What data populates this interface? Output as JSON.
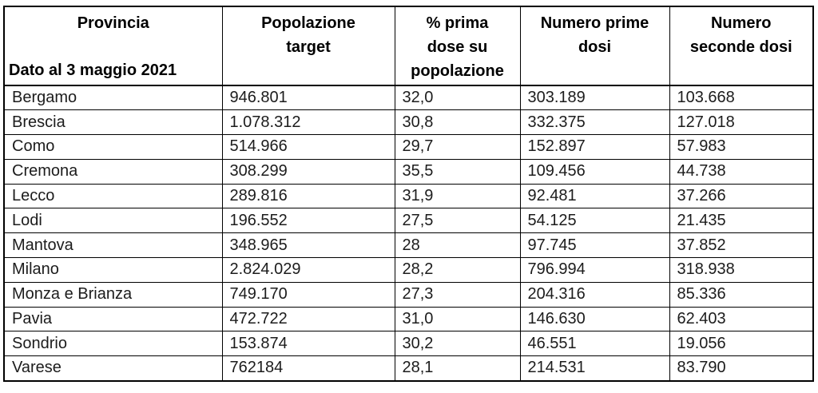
{
  "table": {
    "header": {
      "provincia_label": "Provincia",
      "date_note": "Dato al 3 maggio 2021",
      "columns": [
        {
          "label": "Popolazione target",
          "lines": [
            "Popolazione",
            "target"
          ]
        },
        {
          "label": "% prima dose su popolazione",
          "lines": [
            "% prima",
            "dose su",
            "popolazione"
          ]
        },
        {
          "label": "Numero prime dosi",
          "lines": [
            "Numero prime",
            "dosi"
          ]
        },
        {
          "label": "Numero seconde dosi",
          "lines": [
            "Numero",
            "seconde dosi"
          ]
        }
      ]
    },
    "rows": [
      {
        "provincia": "Bergamo",
        "popolazione_target": "946.801",
        "pct_prima_dose": "32,0",
        "prime_dosi": "303.189",
        "seconde_dosi": "103.668"
      },
      {
        "provincia": "Brescia",
        "popolazione_target": "1.078.312",
        "pct_prima_dose": "30,8",
        "prime_dosi": "332.375",
        "seconde_dosi": "127.018"
      },
      {
        "provincia": "Como",
        "popolazione_target": "514.966",
        "pct_prima_dose": "29,7",
        "prime_dosi": "152.897",
        "seconde_dosi": "57.983"
      },
      {
        "provincia": "Cremona",
        "popolazione_target": "308.299",
        "pct_prima_dose": "35,5",
        "prime_dosi": "109.456",
        "seconde_dosi": "44.738"
      },
      {
        "provincia": "Lecco",
        "popolazione_target": "289.816",
        "pct_prima_dose": "31,9",
        "prime_dosi": "92.481",
        "seconde_dosi": "37.266"
      },
      {
        "provincia": "Lodi",
        "popolazione_target": "196.552",
        "pct_prima_dose": "27,5",
        "prime_dosi": "54.125",
        "seconde_dosi": "21.435"
      },
      {
        "provincia": "Mantova",
        "popolazione_target": "348.965",
        "pct_prima_dose": "28",
        "prime_dosi": "97.745",
        "seconde_dosi": "37.852"
      },
      {
        "provincia": "Milano",
        "popolazione_target": "2.824.029",
        "pct_prima_dose": "28,2",
        "prime_dosi": "796.994",
        "seconde_dosi": "318.938"
      },
      {
        "provincia": "Monza e Brianza",
        "popolazione_target": "749.170",
        "pct_prima_dose": "27,3",
        "prime_dosi": "204.316",
        "seconde_dosi": "85.336"
      },
      {
        "provincia": "Pavia",
        "popolazione_target": "472.722",
        "pct_prima_dose": "31,0",
        "prime_dosi": "146.630",
        "seconde_dosi": "62.403"
      },
      {
        "provincia": "Sondrio",
        "popolazione_target": "153.874",
        "pct_prima_dose": "30,2",
        "prime_dosi": "46.551",
        "seconde_dosi": "19.056"
      },
      {
        "provincia": "Varese",
        "popolazione_target": "762184",
        "pct_prima_dose": "28,1",
        "prime_dosi": "214.531",
        "seconde_dosi": "83.790"
      }
    ]
  },
  "chart_data": {
    "type": "table",
    "columns": [
      "Provincia",
      "Popolazione target",
      "% prima dose su popolazione",
      "Numero prime dosi",
      "Numero seconde dosi"
    ],
    "note": "Dato al 3 maggio 2021",
    "rows": [
      [
        "Bergamo",
        "946.801",
        "32,0",
        "303.189",
        "103.668"
      ],
      [
        "Brescia",
        "1.078.312",
        "30,8",
        "332.375",
        "127.018"
      ],
      [
        "Como",
        "514.966",
        "29,7",
        "152.897",
        "57.983"
      ],
      [
        "Cremona",
        "308.299",
        "35,5",
        "109.456",
        "44.738"
      ],
      [
        "Lecco",
        "289.816",
        "31,9",
        "92.481",
        "37.266"
      ],
      [
        "Lodi",
        "196.552",
        "27,5",
        "54.125",
        "21.435"
      ],
      [
        "Mantova",
        "348.965",
        "28",
        "97.745",
        "37.852"
      ],
      [
        "Milano",
        "2.824.029",
        "28,2",
        "796.994",
        "318.938"
      ],
      [
        "Monza e Brianza",
        "749.170",
        "27,3",
        "204.316",
        "85.336"
      ],
      [
        "Pavia",
        "472.722",
        "31,0",
        "146.630",
        "62.403"
      ],
      [
        "Sondrio",
        "153.874",
        "30,2",
        "46.551",
        "19.056"
      ],
      [
        "Varese",
        "762184",
        "28,1",
        "214.531",
        "83.790"
      ]
    ]
  },
  "colors": {
    "border": "#000000",
    "header_text": "#000000",
    "body_text": "#1c1c1c",
    "background": "#ffffff"
  }
}
